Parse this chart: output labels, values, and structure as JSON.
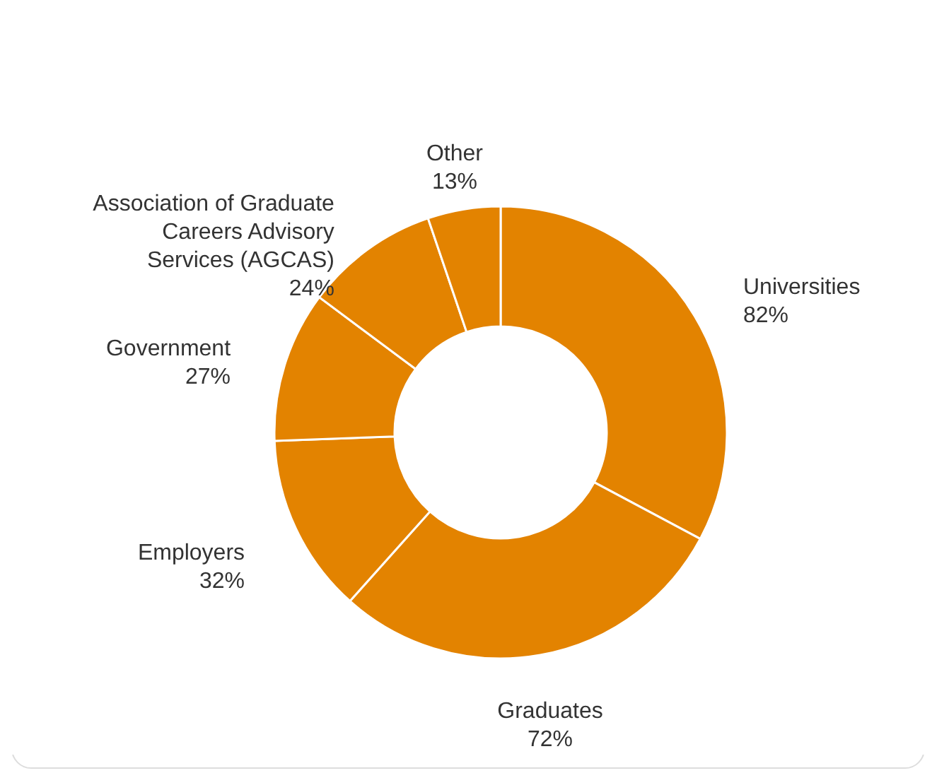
{
  "chart_data": {
    "type": "donut",
    "categories": [
      "Universities",
      "Graduates",
      "Employers",
      "Government",
      "Association of Graduate Careers Advisory Services (AGCAS)",
      "Other"
    ],
    "values": [
      82,
      72,
      32,
      27,
      24,
      13
    ],
    "value_labels": [
      "82%",
      "72%",
      "32%",
      "27%",
      "24%",
      "13%"
    ],
    "colors": [
      "#e38300",
      "#e38300",
      "#e38300",
      "#e38300",
      "#e38300",
      "#e38300"
    ]
  }
}
